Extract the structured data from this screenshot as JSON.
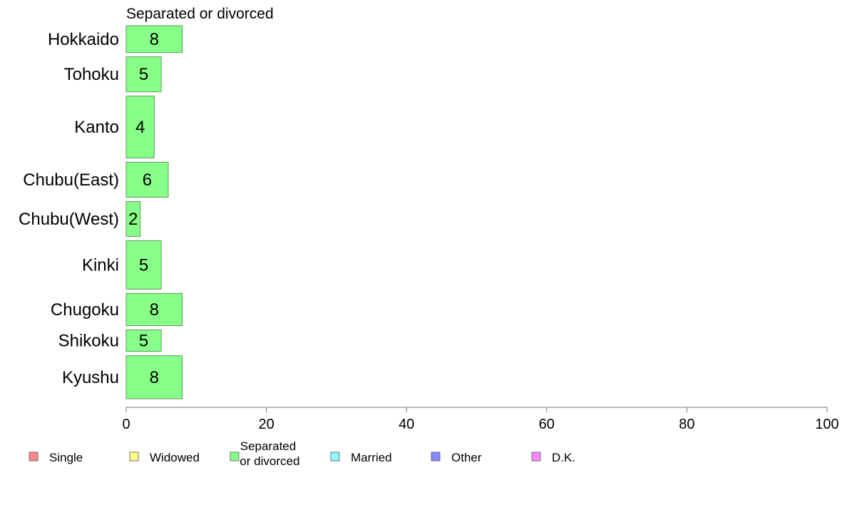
{
  "chart_data": {
    "type": "bar",
    "orientation": "horizontal",
    "title": "Separated or divorced",
    "categories": [
      "Hokkaido",
      "Tohoku",
      "Kanto",
      "Chubu(East)",
      "Chubu(West)",
      "Kinki",
      "Chugoku",
      "Shikoku",
      "Kyushu"
    ],
    "category_weights": [
      1.0,
      1.3,
      2.3,
      1.3,
      1.3,
      1.8,
      1.2,
      0.8,
      1.6
    ],
    "values": [
      8,
      5,
      4,
      6,
      2,
      5,
      8,
      5,
      8
    ],
    "xlim": [
      0,
      100
    ],
    "xticks": [
      0,
      20,
      40,
      60,
      80,
      100
    ],
    "bar_color": "#88ff88",
    "grid": false,
    "legend": {
      "placement": "bottom",
      "items": [
        {
          "label": "Single",
          "color": "#ff8888"
        },
        {
          "label": "Widowed",
          "color": "#ffff88"
        },
        {
          "label": "Separated\n or divorced",
          "color": "#88ff88"
        },
        {
          "label": "Married",
          "color": "#88ffff"
        },
        {
          "label": "Other",
          "color": "#8888ff"
        },
        {
          "label": "D.K.",
          "color": "#ff88ff"
        }
      ]
    }
  }
}
